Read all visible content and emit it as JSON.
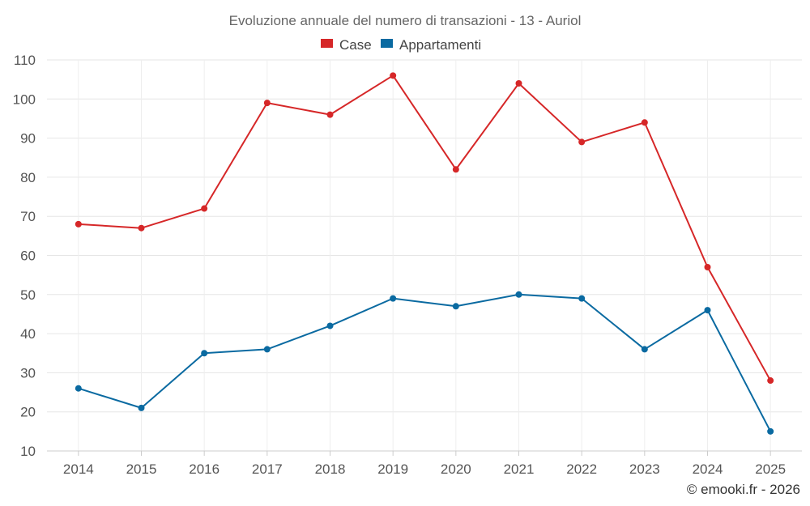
{
  "chart_data": {
    "type": "line",
    "title": "Evoluzione annuale del numero di transazioni - 13 - Auriol",
    "categories": [
      "2014",
      "2015",
      "2016",
      "2017",
      "2018",
      "2019",
      "2020",
      "2021",
      "2022",
      "2023",
      "2024",
      "2025"
    ],
    "series": [
      {
        "name": "Case",
        "color": "#d62728",
        "values": [
          68,
          67,
          72,
          99,
          96,
          106,
          82,
          104,
          89,
          94,
          57,
          28
        ]
      },
      {
        "name": "Appartamenti",
        "color": "#0a6aa1",
        "values": [
          26,
          21,
          35,
          36,
          42,
          49,
          47,
          50,
          49,
          36,
          46,
          15
        ]
      }
    ],
    "ylim": [
      10,
      110
    ],
    "yticks": [
      10,
      20,
      30,
      40,
      50,
      60,
      70,
      80,
      90,
      100,
      110
    ],
    "grid": true,
    "legend": "top-center",
    "xlabel": "",
    "ylabel": ""
  },
  "credit": "© emooki.fr - 2026"
}
